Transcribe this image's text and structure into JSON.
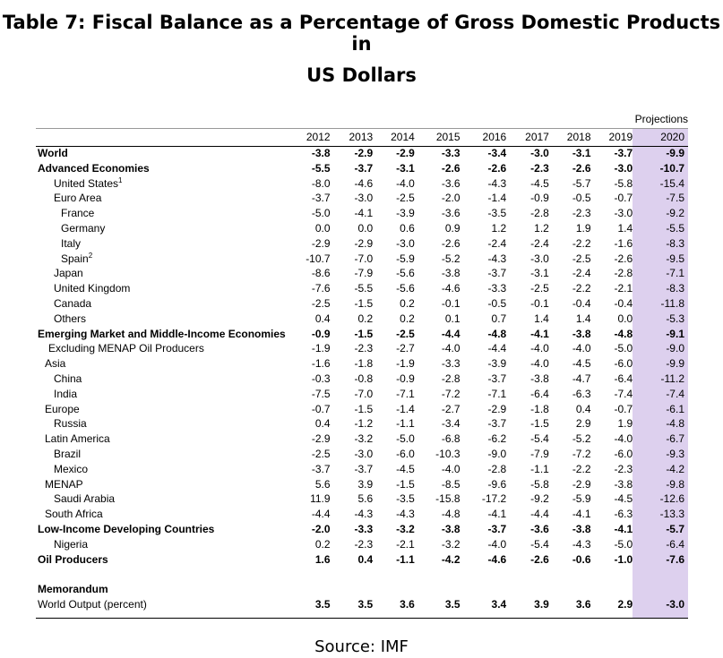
{
  "title_line1": "Table 7: Fiscal Balance as a Percentage of Gross Domestic Products in",
  "title_line2": "US Dollars",
  "projections_label": "Projections",
  "years": [
    "2012",
    "2013",
    "2014",
    "2015",
    "2016",
    "2017",
    "2018",
    "2019",
    "2020"
  ],
  "rows": [
    {
      "label": "World",
      "bold": true,
      "indent": 0,
      "values": [
        "-3.8",
        "-2.9",
        "-2.9",
        "-3.3",
        "-3.4",
        "-3.0",
        "-3.1",
        "-3.7",
        "-9.9"
      ]
    },
    {
      "label": "Advanced Economies",
      "bold": true,
      "indent": 0,
      "values": [
        "-5.5",
        "-3.7",
        "-3.1",
        "-2.6",
        "-2.6",
        "-2.3",
        "-2.6",
        "-3.0",
        "-10.7"
      ]
    },
    {
      "label": "United States",
      "sup": "1",
      "bold": false,
      "indent": 2,
      "values": [
        "-8.0",
        "-4.6",
        "-4.0",
        "-3.6",
        "-4.3",
        "-4.5",
        "-5.7",
        "-5.8",
        "-15.4"
      ]
    },
    {
      "label": "Euro Area",
      "bold": false,
      "indent": 2,
      "values": [
        "-3.7",
        "-3.0",
        "-2.5",
        "-2.0",
        "-1.4",
        "-0.9",
        "-0.5",
        "-0.7",
        "-7.5"
      ]
    },
    {
      "label": "France",
      "bold": false,
      "indent": 3,
      "values": [
        "-5.0",
        "-4.1",
        "-3.9",
        "-3.6",
        "-3.5",
        "-2.8",
        "-2.3",
        "-3.0",
        "-9.2"
      ]
    },
    {
      "label": "Germany",
      "bold": false,
      "indent": 3,
      "values": [
        "0.0",
        "0.0",
        "0.6",
        "0.9",
        "1.2",
        "1.2",
        "1.9",
        "1.4",
        "-5.5"
      ]
    },
    {
      "label": "Italy",
      "bold": false,
      "indent": 3,
      "values": [
        "-2.9",
        "-2.9",
        "-3.0",
        "-2.6",
        "-2.4",
        "-2.4",
        "-2.2",
        "-1.6",
        "-8.3"
      ]
    },
    {
      "label": "Spain",
      "sup": "2",
      "bold": false,
      "indent": 3,
      "values": [
        "-10.7",
        "-7.0",
        "-5.9",
        "-5.2",
        "-4.3",
        "-3.0",
        "-2.5",
        "-2.6",
        "-9.5"
      ]
    },
    {
      "label": "Japan",
      "bold": false,
      "indent": 2,
      "values": [
        "-8.6",
        "-7.9",
        "-5.6",
        "-3.8",
        "-3.7",
        "-3.1",
        "-2.4",
        "-2.8",
        "-7.1"
      ]
    },
    {
      "label": "United Kingdom",
      "bold": false,
      "indent": 2,
      "values": [
        "-7.6",
        "-5.5",
        "-5.6",
        "-4.6",
        "-3.3",
        "-2.5",
        "-2.2",
        "-2.1",
        "-8.3"
      ]
    },
    {
      "label": "Canada",
      "bold": false,
      "indent": 2,
      "values": [
        "-2.5",
        "-1.5",
        "0.2",
        "-0.1",
        "-0.5",
        "-0.1",
        "-0.4",
        "-0.4",
        "-11.8"
      ]
    },
    {
      "label": "Others",
      "bold": false,
      "indent": 2,
      "values": [
        "0.4",
        "0.2",
        "0.2",
        "0.1",
        "0.7",
        "1.4",
        "1.4",
        "0.0",
        "-5.3"
      ]
    },
    {
      "label": "Emerging Market and Middle-Income Economies",
      "bold": true,
      "indent": 0,
      "values": [
        "-0.9",
        "-1.5",
        "-2.5",
        "-4.4",
        "-4.8",
        "-4.1",
        "-3.8",
        "-4.8",
        "-9.1"
      ]
    },
    {
      "label": "Excluding MENAP Oil Producers",
      "bold": false,
      "indent": 4,
      "values": [
        "-1.9",
        "-2.3",
        "-2.7",
        "-4.0",
        "-4.4",
        "-4.0",
        "-4.0",
        "-5.0",
        "-9.0"
      ]
    },
    {
      "label": "Asia",
      "bold": false,
      "indent": 1,
      "values": [
        "-1.6",
        "-1.8",
        "-1.9",
        "-3.3",
        "-3.9",
        "-4.0",
        "-4.5",
        "-6.0",
        "-9.9"
      ]
    },
    {
      "label": "China",
      "bold": false,
      "indent": 2,
      "values": [
        "-0.3",
        "-0.8",
        "-0.9",
        "-2.8",
        "-3.7",
        "-3.8",
        "-4.7",
        "-6.4",
        "-11.2"
      ]
    },
    {
      "label": "India",
      "bold": false,
      "indent": 2,
      "values": [
        "-7.5",
        "-7.0",
        "-7.1",
        "-7.2",
        "-7.1",
        "-6.4",
        "-6.3",
        "-7.4",
        "-7.4"
      ]
    },
    {
      "label": "Europe",
      "bold": false,
      "indent": 1,
      "values": [
        "-0.7",
        "-1.5",
        "-1.4",
        "-2.7",
        "-2.9",
        "-1.8",
        "0.4",
        "-0.7",
        "-6.1"
      ]
    },
    {
      "label": "Russia",
      "bold": false,
      "indent": 2,
      "values": [
        "0.4",
        "-1.2",
        "-1.1",
        "-3.4",
        "-3.7",
        "-1.5",
        "2.9",
        "1.9",
        "-4.8"
      ]
    },
    {
      "label": "Latin America",
      "bold": false,
      "indent": 1,
      "values": [
        "-2.9",
        "-3.2",
        "-5.0",
        "-6.8",
        "-6.2",
        "-5.4",
        "-5.2",
        "-4.0",
        "-6.7"
      ]
    },
    {
      "label": "Brazil",
      "bold": false,
      "indent": 2,
      "values": [
        "-2.5",
        "-3.0",
        "-6.0",
        "-10.3",
        "-9.0",
        "-7.9",
        "-7.2",
        "-6.0",
        "-9.3"
      ]
    },
    {
      "label": "Mexico",
      "bold": false,
      "indent": 2,
      "values": [
        "-3.7",
        "-3.7",
        "-4.5",
        "-4.0",
        "-2.8",
        "-1.1",
        "-2.2",
        "-2.3",
        "-4.2"
      ]
    },
    {
      "label": "MENAP",
      "bold": false,
      "indent": 1,
      "values": [
        "5.6",
        "3.9",
        "-1.5",
        "-8.5",
        "-9.6",
        "-5.8",
        "-2.9",
        "-3.8",
        "-9.8"
      ]
    },
    {
      "label": "Saudi Arabia",
      "bold": false,
      "indent": 2,
      "values": [
        "11.9",
        "5.6",
        "-3.5",
        "-15.8",
        "-17.2",
        "-9.2",
        "-5.9",
        "-4.5",
        "-12.6"
      ]
    },
    {
      "label": "South Africa",
      "bold": false,
      "indent": 1,
      "values": [
        "-4.4",
        "-4.3",
        "-4.3",
        "-4.8",
        "-4.1",
        "-4.4",
        "-4.1",
        "-6.3",
        "-13.3"
      ]
    },
    {
      "label": "Low-Income Developing Countries",
      "bold": true,
      "indent": 0,
      "values": [
        "-2.0",
        "-3.3",
        "-3.2",
        "-3.8",
        "-3.7",
        "-3.6",
        "-3.8",
        "-4.1",
        "-5.7"
      ]
    },
    {
      "label": "Nigeria",
      "bold": false,
      "indent": 2,
      "values": [
        "0.2",
        "-2.3",
        "-2.1",
        "-3.2",
        "-4.0",
        "-5.4",
        "-4.3",
        "-5.0",
        "-6.4"
      ]
    },
    {
      "label": "Oil Producers",
      "bold": true,
      "indent": 0,
      "values": [
        "1.6",
        "0.4",
        "-1.1",
        "-4.2",
        "-4.6",
        "-2.6",
        "-0.6",
        "-1.0",
        "-7.6"
      ]
    }
  ],
  "memorandum_label": "Memorandum",
  "world_output": {
    "label": "World Output (percent)",
    "values": [
      "3.5",
      "3.5",
      "3.6",
      "3.5",
      "3.4",
      "3.9",
      "3.6",
      "2.9",
      "-3.0"
    ]
  },
  "source": "Source: IMF",
  "colors": {
    "projection_band": "#ddd0ee"
  }
}
